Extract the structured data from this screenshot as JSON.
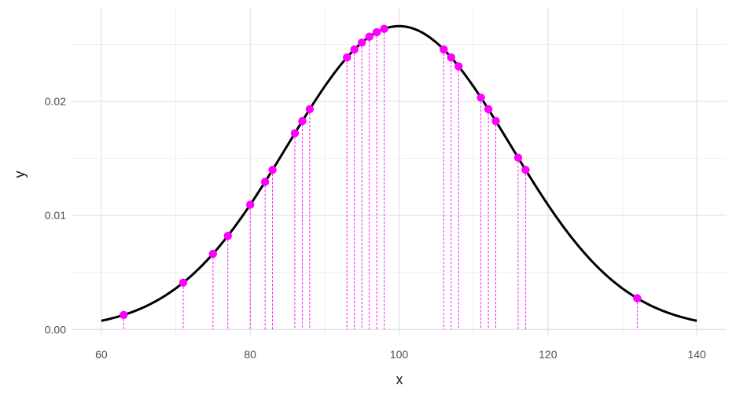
{
  "chart_data": {
    "type": "scatter",
    "xlabel": "x",
    "ylabel": "y",
    "xlim": [
      56,
      144
    ],
    "ylim": [
      -0.0006,
      0.0282
    ],
    "x_ticks": [
      60,
      80,
      100,
      120,
      140
    ],
    "x_tick_labels": [
      "60",
      "80",
      "100",
      "120",
      "140"
    ],
    "x_minor_ticks": [
      70,
      90,
      110,
      130
    ],
    "y_ticks": [
      0.0,
      0.01,
      0.02
    ],
    "y_tick_labels": [
      "0.00",
      "0.01",
      "0.02"
    ],
    "y_minor_ticks": [
      0.005,
      0.015,
      0.025
    ],
    "grid": true,
    "curve": {
      "type": "line",
      "distribution": "normal",
      "mean": 100,
      "sd": 15,
      "x_range": [
        60,
        140
      ],
      "color": "#000000"
    },
    "points": {
      "x": [
        63,
        71,
        75,
        77,
        80,
        82,
        83,
        86,
        87,
        88,
        93,
        94,
        95,
        96,
        97,
        98,
        106,
        107,
        108,
        111,
        112,
        113,
        116,
        117,
        132
      ],
      "color": "#ff00ff",
      "drop_lines": true
    }
  }
}
